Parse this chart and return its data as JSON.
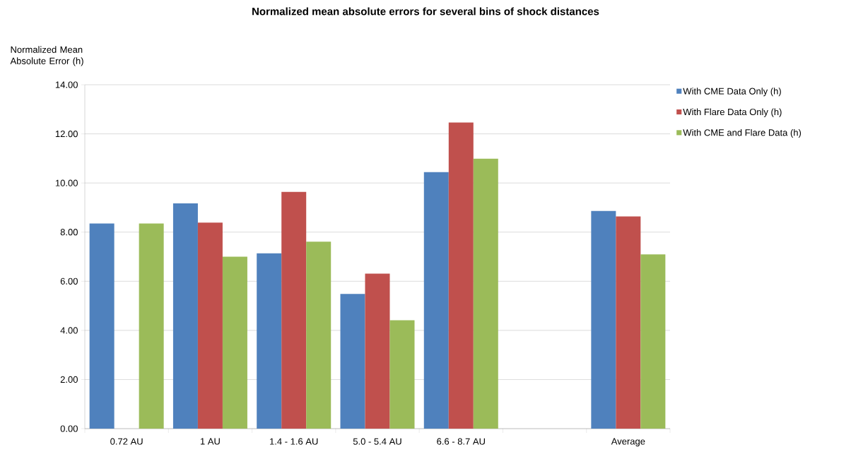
{
  "chart_data": {
    "type": "bar",
    "title": "Normalized mean absolute errors for several bins of shock distances",
    "ylabel": "Normalized Mean Absolute Error (h)",
    "categories": [
      "0.72 AU",
      "1 AU",
      "1.4 - 1.6 AU",
      "5.0 - 5.4 AU",
      "6.6 - 8.7 AU",
      null,
      "Average"
    ],
    "series": [
      {
        "name": "With CME Data Only (h)",
        "color": "#4f81bd",
        "values": [
          8.35,
          9.17,
          7.14,
          5.48,
          10.44,
          null,
          8.86
        ]
      },
      {
        "name": "With Flare Data Only (h)",
        "color": "#c0504d",
        "values": [
          null,
          8.39,
          9.64,
          6.31,
          12.46,
          null,
          8.64
        ]
      },
      {
        "name": "With CME and Flare Data (h)",
        "color": "#9bbb59",
        "values": [
          8.35,
          7.0,
          7.61,
          4.41,
          10.99,
          null,
          7.09
        ]
      }
    ],
    "ylim": [
      0,
      14
    ],
    "yticks": [
      {
        "value": 0,
        "label": "0.00"
      },
      {
        "value": 2,
        "label": "2.00"
      },
      {
        "value": 4,
        "label": "4.00"
      },
      {
        "value": 6,
        "label": "6.00"
      },
      {
        "value": 8,
        "label": "8.00"
      },
      {
        "value": 10,
        "label": "10.00"
      },
      {
        "value": 12,
        "label": "12.00"
      },
      {
        "value": 14,
        "label": "14.00"
      }
    ],
    "grid": "y",
    "legend": "top right"
  }
}
